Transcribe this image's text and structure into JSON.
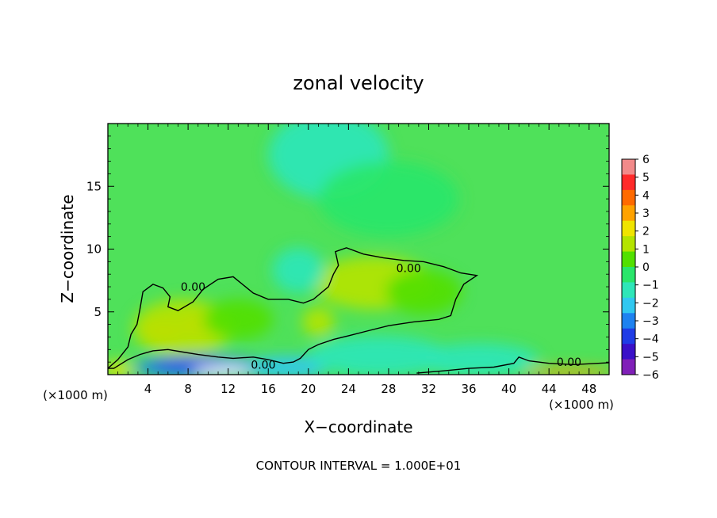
{
  "chart_data": {
    "type": "heatmap",
    "title": "zonal velocity",
    "xlabel": "X−coordinate",
    "ylabel": "Z−coordinate",
    "x_unit_left": "(×1000 m)",
    "x_unit_right": "(×1000 m)",
    "xlim": [
      0,
      50
    ],
    "ylim": [
      0,
      20
    ],
    "x_ticks": [
      4,
      8,
      12,
      16,
      20,
      24,
      28,
      32,
      36,
      40,
      44,
      48
    ],
    "y_ticks": [
      5,
      10,
      15
    ],
    "x_tick_labels": [
      "4",
      "8",
      "12",
      "16",
      "20",
      "24",
      "28",
      "32",
      "36",
      "40",
      "44",
      "48"
    ],
    "y_tick_labels": [
      "5",
      "10",
      "15"
    ],
    "colorbar": {
      "levels": [
        6,
        5,
        4,
        3,
        2,
        1,
        0,
        -1,
        -2,
        -3,
        -4,
        -5,
        -6
      ],
      "labels": [
        "6",
        "5",
        "4",
        "3",
        "2",
        "1",
        "0",
        "−1",
        "−2",
        "−3",
        "−4",
        "−5",
        "−6"
      ],
      "colors": [
        "#f28a8a",
        "#ff2a2a",
        "#ff6a00",
        "#ffa200",
        "#f0e400",
        "#b4e400",
        "#52e000",
        "#29e66a",
        "#2ee6b8",
        "#30c8f0",
        "#1e82f0",
        "#1f3ce6",
        "#3a10c8",
        "#8020b8"
      ]
    },
    "contour_label": "0.00",
    "contour_labels_pos": [
      [
        8.5,
        7.0
      ],
      [
        30.0,
        8.5
      ],
      [
        15.5,
        0.8
      ],
      [
        46.0,
        1.0
      ]
    ],
    "contour_interval_text": "CONTOUR INTERVAL = 1.000E+01",
    "contour_zero_line": [
      [
        0,
        0.5
      ],
      [
        1,
        1.2
      ],
      [
        2,
        2.2
      ],
      [
        2.3,
        3.2
      ],
      [
        2.9,
        4.0
      ],
      [
        3.2,
        5.2
      ],
      [
        3.5,
        6.6
      ],
      [
        4.5,
        7.2
      ],
      [
        5.5,
        6.9
      ],
      [
        6.2,
        6.2
      ],
      [
        6.0,
        5.4
      ],
      [
        7.0,
        5.1
      ],
      [
        8.5,
        5.8
      ],
      [
        9.5,
        6.8
      ],
      [
        11.0,
        7.6
      ],
      [
        12.5,
        7.8
      ],
      [
        14.5,
        6.5
      ],
      [
        16.0,
        6.0
      ],
      [
        18.0,
        6.0
      ],
      [
        19.5,
        5.7
      ],
      [
        20.5,
        6.0
      ],
      [
        22.0,
        7.0
      ],
      [
        22.5,
        8.0
      ],
      [
        23.0,
        8.7
      ],
      [
        22.7,
        9.8
      ],
      [
        23.8,
        10.1
      ],
      [
        25.5,
        9.6
      ],
      [
        27.5,
        9.3
      ],
      [
        29.5,
        9.1
      ],
      [
        31.5,
        9.0
      ],
      [
        33.5,
        8.6
      ],
      [
        35.2,
        8.1
      ],
      [
        36.8,
        7.9
      ],
      [
        35.5,
        7.2
      ],
      [
        34.7,
        6.0
      ],
      [
        34.2,
        4.7
      ],
      [
        33.0,
        4.4
      ],
      [
        30.5,
        4.2
      ],
      [
        28.0,
        3.9
      ],
      [
        26.0,
        3.5
      ],
      [
        24.0,
        3.1
      ],
      [
        22.5,
        2.8
      ],
      [
        21.0,
        2.4
      ],
      [
        20.0,
        2.0
      ],
      [
        19.2,
        1.3
      ],
      [
        18.5,
        1.0
      ],
      [
        17.5,
        0.9
      ],
      [
        16.0,
        1.2
      ],
      [
        14.5,
        1.4
      ],
      [
        12.5,
        1.3
      ],
      [
        11.0,
        1.4
      ],
      [
        9.0,
        1.6
      ],
      [
        7.5,
        1.8
      ],
      [
        6.0,
        2.0
      ],
      [
        4.5,
        1.9
      ],
      [
        3.2,
        1.6
      ],
      [
        2.0,
        1.2
      ],
      [
        1.2,
        0.8
      ],
      [
        0.6,
        0.5
      ]
    ],
    "contour_bottom_line": [
      [
        30.8,
        0.12
      ],
      [
        33.5,
        0.3
      ],
      [
        36.0,
        0.5
      ],
      [
        38.5,
        0.6
      ],
      [
        40.5,
        0.9
      ],
      [
        41.0,
        1.4
      ],
      [
        42.0,
        1.1
      ],
      [
        44.0,
        0.9
      ],
      [
        46.5,
        0.8
      ],
      [
        50.0,
        0.95
      ]
    ],
    "field_blobs": [
      {
        "x": 5.5,
        "z": 3.5,
        "rx": 2.3,
        "rz": 1.0,
        "v": 3.0
      },
      {
        "x": 9.5,
        "z": 4.0,
        "rx": 2.2,
        "rz": 1.1,
        "v": 3.0
      },
      {
        "x": 7.5,
        "z": 3.7,
        "rx": 5.0,
        "rz": 2.3,
        "v": 1.4
      },
      {
        "x": 13.0,
        "z": 4.4,
        "rx": 3.5,
        "rz": 1.6,
        "v": 0.9
      },
      {
        "x": 21.0,
        "z": 4.2,
        "rx": 1.6,
        "rz": 1.2,
        "v": 1.6
      },
      {
        "x": 26.5,
        "z": 7.3,
        "rx": 6.0,
        "rz": 2.1,
        "v": 1.0
      },
      {
        "x": 31.5,
        "z": 6.6,
        "rx": 3.8,
        "rz": 1.8,
        "v": 0.9
      },
      {
        "x": 19.0,
        "z": 8.3,
        "rx": 2.6,
        "rz": 1.8,
        "v": -1.4
      },
      {
        "x": 22.0,
        "z": 17.5,
        "rx": 6.0,
        "rz": 3.5,
        "v": -1.2
      },
      {
        "x": 28.0,
        "z": 14.0,
        "rx": 7.0,
        "rz": 3.0,
        "v": -0.7
      },
      {
        "x": 9.5,
        "z": 0.6,
        "rx": 7.0,
        "rz": 0.9,
        "v": -3.8
      },
      {
        "x": 8.0,
        "z": 0.9,
        "rx": 3.5,
        "rz": 0.5,
        "v": -4.8
      },
      {
        "x": 11.5,
        "z": 0.3,
        "rx": 3.0,
        "rz": 0.4,
        "v": -6.5
      },
      {
        "x": 18.0,
        "z": 0.6,
        "rx": 4.0,
        "rz": 0.9,
        "v": -2.2
      },
      {
        "x": 27.0,
        "z": 1.5,
        "rx": 7.0,
        "rz": 1.6,
        "v": -1.6
      },
      {
        "x": 37.0,
        "z": 1.2,
        "rx": 6.0,
        "rz": 1.3,
        "v": -1.4
      },
      {
        "x": 46.0,
        "z": 0.2,
        "rx": 4.5,
        "rz": 0.35,
        "v": 3.5
      },
      {
        "x": 1.0,
        "z": 0.4,
        "rx": 1.5,
        "rz": 0.6,
        "v": 2.5
      }
    ]
  }
}
